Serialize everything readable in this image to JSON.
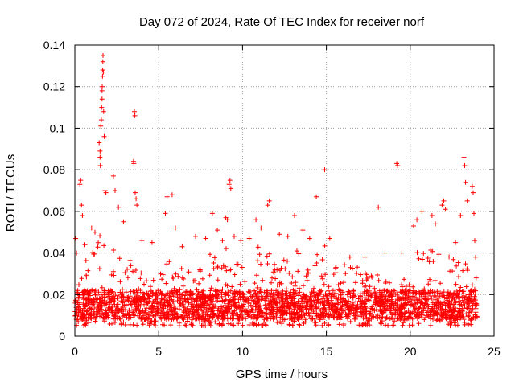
{
  "chart_data": {
    "type": "scatter",
    "title": "Day 072 of 2024, Rate Of TEC Index for receiver norf",
    "xlabel": "GPS time / hours",
    "ylabel": "ROTI / TECUs",
    "xlim": [
      0,
      25
    ],
    "ylim": [
      0,
      0.14
    ],
    "x_ticks": [
      0,
      5,
      10,
      15,
      20,
      25
    ],
    "y_ticks": [
      0,
      0.02,
      0.04,
      0.06,
      0.08,
      0.1,
      0.12,
      0.14
    ],
    "x_tick_labels": [
      "0",
      "5",
      "10",
      "15",
      "20",
      "25"
    ],
    "y_tick_labels": [
      "0",
      "0.02",
      "0.04",
      "0.06",
      "0.08",
      "0.1",
      "0.12",
      "0.14"
    ],
    "grid": true,
    "marker": "+",
    "color": "#ff0000",
    "series": [
      {
        "name": "ROTI",
        "points": [
          [
            0.05,
            0.047
          ],
          [
            0.1,
            0.04
          ],
          [
            0.3,
            0.073
          ],
          [
            0.35,
            0.075
          ],
          [
            0.4,
            0.063
          ],
          [
            0.45,
            0.058
          ],
          [
            0.6,
            0.044
          ],
          [
            1.0,
            0.052
          ],
          [
            1.2,
            0.05
          ],
          [
            1.45,
            0.093
          ],
          [
            1.5,
            0.089
          ],
          [
            1.5,
            0.086
          ],
          [
            1.52,
            0.082
          ],
          [
            1.55,
            0.101
          ],
          [
            1.58,
            0.104
          ],
          [
            1.6,
            0.11
          ],
          [
            1.62,
            0.114
          ],
          [
            1.62,
            0.118
          ],
          [
            1.63,
            0.12
          ],
          [
            1.65,
            0.125
          ],
          [
            1.66,
            0.128
          ],
          [
            1.67,
            0.132
          ],
          [
            1.68,
            0.135
          ],
          [
            1.7,
            0.127
          ],
          [
            1.72,
            0.108
          ],
          [
            1.75,
            0.096
          ],
          [
            1.8,
            0.07
          ],
          [
            1.85,
            0.069
          ],
          [
            2.3,
            0.077
          ],
          [
            2.4,
            0.07
          ],
          [
            2.6,
            0.062
          ],
          [
            2.9,
            0.055
          ],
          [
            3.5,
            0.084
          ],
          [
            3.52,
            0.083
          ],
          [
            3.55,
            0.108
          ],
          [
            3.58,
            0.106
          ],
          [
            3.6,
            0.069
          ],
          [
            3.65,
            0.066
          ],
          [
            3.7,
            0.063
          ],
          [
            4.0,
            0.046
          ],
          [
            4.6,
            0.045
          ],
          [
            5.4,
            0.059
          ],
          [
            5.5,
            0.067
          ],
          [
            5.8,
            0.068
          ],
          [
            6.0,
            0.052
          ],
          [
            6.4,
            0.043
          ],
          [
            7.2,
            0.048
          ],
          [
            7.8,
            0.047
          ],
          [
            8.2,
            0.059
          ],
          [
            8.5,
            0.051
          ],
          [
            8.8,
            0.046
          ],
          [
            9.0,
            0.057
          ],
          [
            9.1,
            0.056
          ],
          [
            9.2,
            0.073
          ],
          [
            9.25,
            0.075
          ],
          [
            9.3,
            0.071
          ],
          [
            9.5,
            0.048
          ],
          [
            9.9,
            0.046
          ],
          [
            10.4,
            0.047
          ],
          [
            10.8,
            0.056
          ],
          [
            11.1,
            0.052
          ],
          [
            11.5,
            0.063
          ],
          [
            11.6,
            0.065
          ],
          [
            12.2,
            0.049
          ],
          [
            12.7,
            0.048
          ],
          [
            13.1,
            0.058
          ],
          [
            13.6,
            0.051
          ],
          [
            14.0,
            0.047
          ],
          [
            14.4,
            0.067
          ],
          [
            14.9,
            0.08
          ],
          [
            15.2,
            0.047
          ],
          [
            16.4,
            0.038
          ],
          [
            17.3,
            0.038
          ],
          [
            18.1,
            0.062
          ],
          [
            18.5,
            0.04
          ],
          [
            19.2,
            0.083
          ],
          [
            19.25,
            0.082
          ],
          [
            19.5,
            0.04
          ],
          [
            20.2,
            0.053
          ],
          [
            20.4,
            0.056
          ],
          [
            20.7,
            0.06
          ],
          [
            21.3,
            0.058
          ],
          [
            21.5,
            0.054
          ],
          [
            21.9,
            0.063
          ],
          [
            22.0,
            0.065
          ],
          [
            22.1,
            0.061
          ],
          [
            22.7,
            0.045
          ],
          [
            23.0,
            0.058
          ],
          [
            23.2,
            0.086
          ],
          [
            23.25,
            0.082
          ],
          [
            23.3,
            0.074
          ],
          [
            23.4,
            0.065
          ],
          [
            23.7,
            0.072
          ],
          [
            23.75,
            0.069
          ],
          [
            23.8,
            0.059
          ],
          [
            23.85,
            0.046
          ],
          [
            23.9,
            0.038
          ]
        ]
      }
    ],
    "dense_band": {
      "description": "continuous background scatter of points across 0-24 h, mostly between 0.008 and 0.03 with peaks up to ~0.05",
      "x_range": [
        0,
        24
      ],
      "envelope_hours": [
        0,
        0.5,
        1,
        1.5,
        2,
        2.5,
        3,
        3.5,
        4,
        4.5,
        5,
        5.5,
        6,
        6.5,
        7,
        7.5,
        8,
        8.5,
        9,
        9.5,
        10,
        10.5,
        11,
        11.5,
        12,
        12.5,
        13,
        13.5,
        14,
        14.5,
        15,
        15.5,
        16,
        16.5,
        17,
        17.5,
        18,
        18.5,
        19,
        19.5,
        20,
        20.5,
        21,
        21.5,
        22,
        22.5,
        23,
        23.5,
        24
      ],
      "envelope_top": [
        0.025,
        0.035,
        0.04,
        0.05,
        0.045,
        0.04,
        0.035,
        0.045,
        0.032,
        0.03,
        0.03,
        0.038,
        0.042,
        0.036,
        0.03,
        0.034,
        0.04,
        0.042,
        0.045,
        0.04,
        0.038,
        0.038,
        0.045,
        0.048,
        0.04,
        0.042,
        0.045,
        0.042,
        0.04,
        0.042,
        0.045,
        0.035,
        0.034,
        0.036,
        0.032,
        0.03,
        0.034,
        0.032,
        0.034,
        0.03,
        0.036,
        0.042,
        0.045,
        0.04,
        0.042,
        0.038,
        0.04,
        0.035,
        0.03
      ],
      "envelope_bottom": 0.005,
      "typical_low": 0.008,
      "typical_high": 0.022
    }
  }
}
